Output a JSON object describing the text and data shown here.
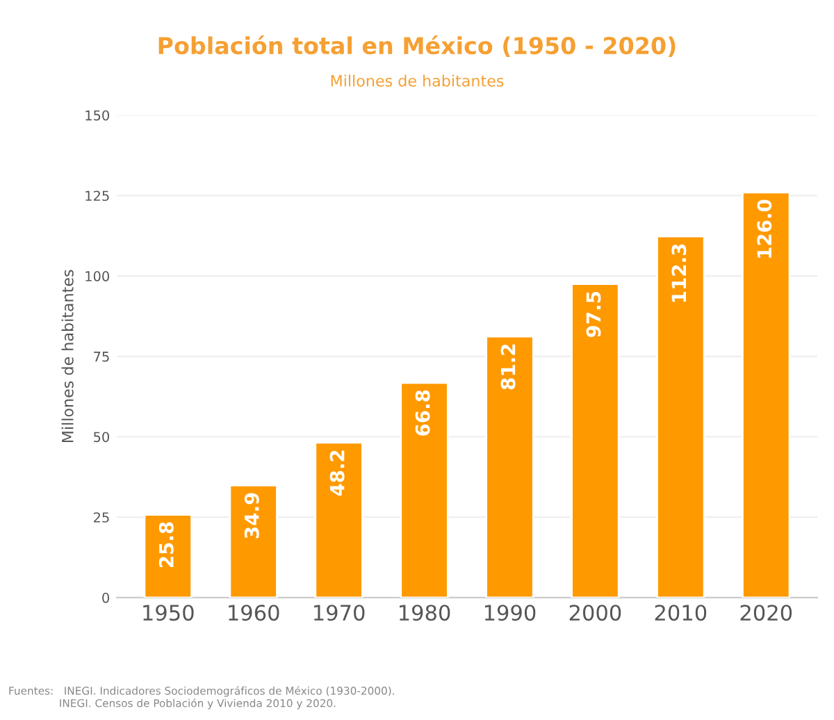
{
  "chart_data": {
    "type": "bar",
    "title": "Población total en México (1950 - 2020)",
    "subtitle": "Millones de habitantes",
    "ylabel": "Millones de habitantes",
    "categories": [
      "1950",
      "1960",
      "1970",
      "1980",
      "1990",
      "2000",
      "2010",
      "2020"
    ],
    "values": [
      25.8,
      34.9,
      48.2,
      66.8,
      81.2,
      97.5,
      112.3,
      126.0
    ],
    "value_labels": [
      "25.8",
      "34.9",
      "48.2",
      "66.8",
      "81.2",
      "97.5",
      "112.3",
      "126.0"
    ],
    "color": "#ff9900",
    "ylim": [
      0,
      150
    ],
    "yticks": [
      0,
      25,
      50,
      75,
      100,
      125,
      150
    ],
    "grid": "y",
    "annotations": [
      "Fuentes:   INEGI. Indicadores Sociodemográficos de México (1930-2000).\n               INEGI. Censos de Población y Vivienda 2010 y 2020."
    ]
  }
}
